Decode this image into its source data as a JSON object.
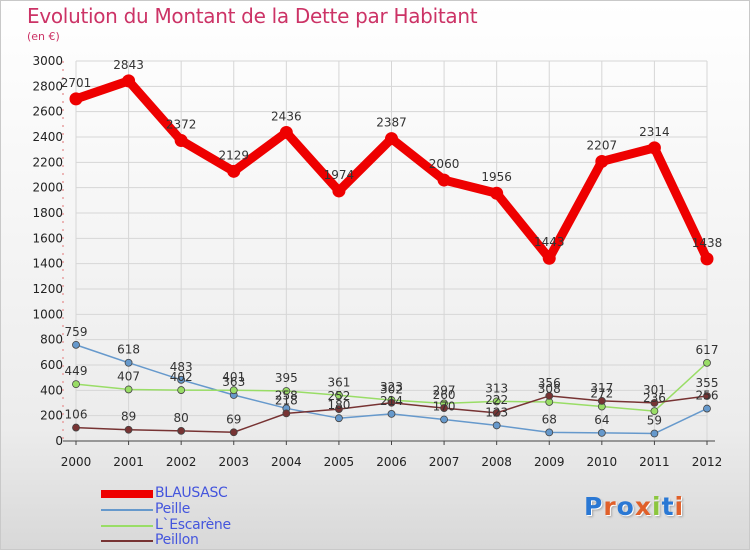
{
  "title": "Evolution du Montant de la Dette par Habitant",
  "subtitle": "(en €)",
  "logo": {
    "text": "Proxiti",
    "letter_colors": [
      "#2a78d4",
      "#e0602a",
      "#2a78d4",
      "#e0602a",
      "#8cc63f",
      "#2a78d4",
      "#e0602a"
    ]
  },
  "chart_data": {
    "type": "line",
    "title": "Evolution du Montant de la Dette par Habitant",
    "subtitle": "(en €)",
    "x": [
      "2000",
      "2001",
      "2002",
      "2003",
      "2004",
      "2005",
      "2006",
      "2007",
      "2008",
      "2009",
      "2010",
      "2011",
      "2012"
    ],
    "ylim": [
      0,
      3000
    ],
    "yticks": [
      0,
      200,
      400,
      600,
      800,
      1000,
      1200,
      1400,
      1600,
      1800,
      2000,
      2200,
      2400,
      2600,
      2800,
      3000
    ],
    "grid": true,
    "legend_position": "bottom-left",
    "series": [
      {
        "name": "BLAUSASC",
        "color": "#ee0000",
        "values": [
          2701,
          2843,
          2372,
          2129,
          2436,
          1974,
          2387,
          2060,
          1956,
          1443,
          2207,
          2314,
          1438
        ],
        "labels": [
          "2701",
          "2843",
          "2372",
          "2129",
          "2436",
          "1974",
          "2387",
          "2060",
          "1956",
          "1443",
          "2207",
          "2314",
          "1438"
        ]
      },
      {
        "name": "Peille",
        "color": "#6699cc",
        "values": [
          759,
          618,
          483,
          363,
          258,
          180,
          214,
          170,
          123,
          68,
          64,
          59,
          256
        ],
        "labels": [
          "759",
          "618",
          "483",
          "363",
          "258",
          "180",
          "214",
          "170",
          "123",
          "68",
          "64",
          "59",
          "256"
        ]
      },
      {
        "name": "L`Escarène",
        "color": "#99dd66",
        "values": [
          449,
          407,
          402,
          401,
          395,
          361,
          323,
          297,
          313,
          308,
          272,
          236,
          617
        ],
        "labels": [
          "449",
          "407",
          "402",
          "401",
          "395",
          "361",
          "323",
          "297",
          "313",
          "308",
          "272",
          "236",
          "617"
        ]
      },
      {
        "name": "Peillon",
        "color": "#773333",
        "values": [
          106,
          89,
          80,
          69,
          218,
          252,
          302,
          260,
          222,
          356,
          317,
          301,
          355
        ],
        "labels": [
          "106",
          "89",
          "80",
          "69",
          "218",
          "252",
          "302",
          "260",
          "222",
          "356",
          "317",
          "301",
          "355"
        ]
      }
    ]
  }
}
